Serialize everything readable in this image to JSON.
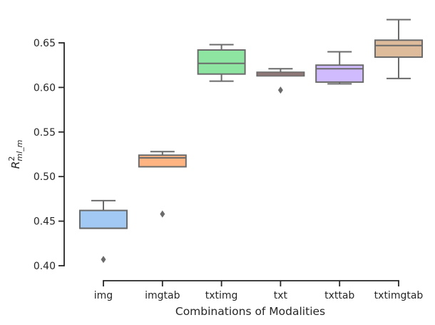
{
  "chart_data": {
    "type": "box",
    "title": "",
    "xlabel": "Combinations of Modalities",
    "ylabel": {
      "base": "R",
      "superscript": "2",
      "subscript": "ml_m"
    },
    "ylim": [
      0.385,
      0.68
    ],
    "yticks": [
      0.4,
      0.45,
      0.5,
      0.55,
      0.6,
      0.65
    ],
    "ytick_labels": [
      "0.40",
      "0.45",
      "0.50",
      "0.55",
      "0.60",
      "0.65"
    ],
    "grid": false,
    "legend": "none",
    "categories": [
      "img",
      "imgtab",
      "txtimg",
      "txt",
      "txttab",
      "txtimgtab"
    ],
    "boxes": [
      {
        "category": "img",
        "whisker_low": 0.442,
        "q1": 0.442,
        "median": 0.442,
        "q3": 0.462,
        "whisker_high": 0.473,
        "outliers": [
          0.407
        ],
        "color": "#a1c9f4"
      },
      {
        "category": "imgtab",
        "whisker_low": 0.511,
        "q1": 0.511,
        "median": 0.521,
        "q3": 0.524,
        "whisker_high": 0.528,
        "outliers": [
          0.458
        ],
        "color": "#ffb482"
      },
      {
        "category": "txtimg",
        "whisker_low": 0.607,
        "q1": 0.615,
        "median": 0.627,
        "q3": 0.642,
        "whisker_high": 0.648,
        "outliers": [],
        "color": "#8de5a1"
      },
      {
        "category": "txt",
        "whisker_low": 0.613,
        "q1": 0.613,
        "median": 0.615,
        "q3": 0.617,
        "whisker_high": 0.621,
        "outliers": [
          0.597
        ],
        "color": "#ff9f9b"
      },
      {
        "category": "txttab",
        "whisker_low": 0.604,
        "q1": 0.606,
        "median": 0.621,
        "q3": 0.625,
        "whisker_high": 0.64,
        "outliers": [],
        "color": "#d0bbff"
      },
      {
        "category": "txtimgtab",
        "whisker_low": 0.61,
        "q1": 0.634,
        "median": 0.647,
        "q3": 0.653,
        "whisker_high": 0.676,
        "outliers": [],
        "color": "#debb9b"
      }
    ],
    "line_color": "#6b6b6b",
    "axis_color": "#262626"
  }
}
